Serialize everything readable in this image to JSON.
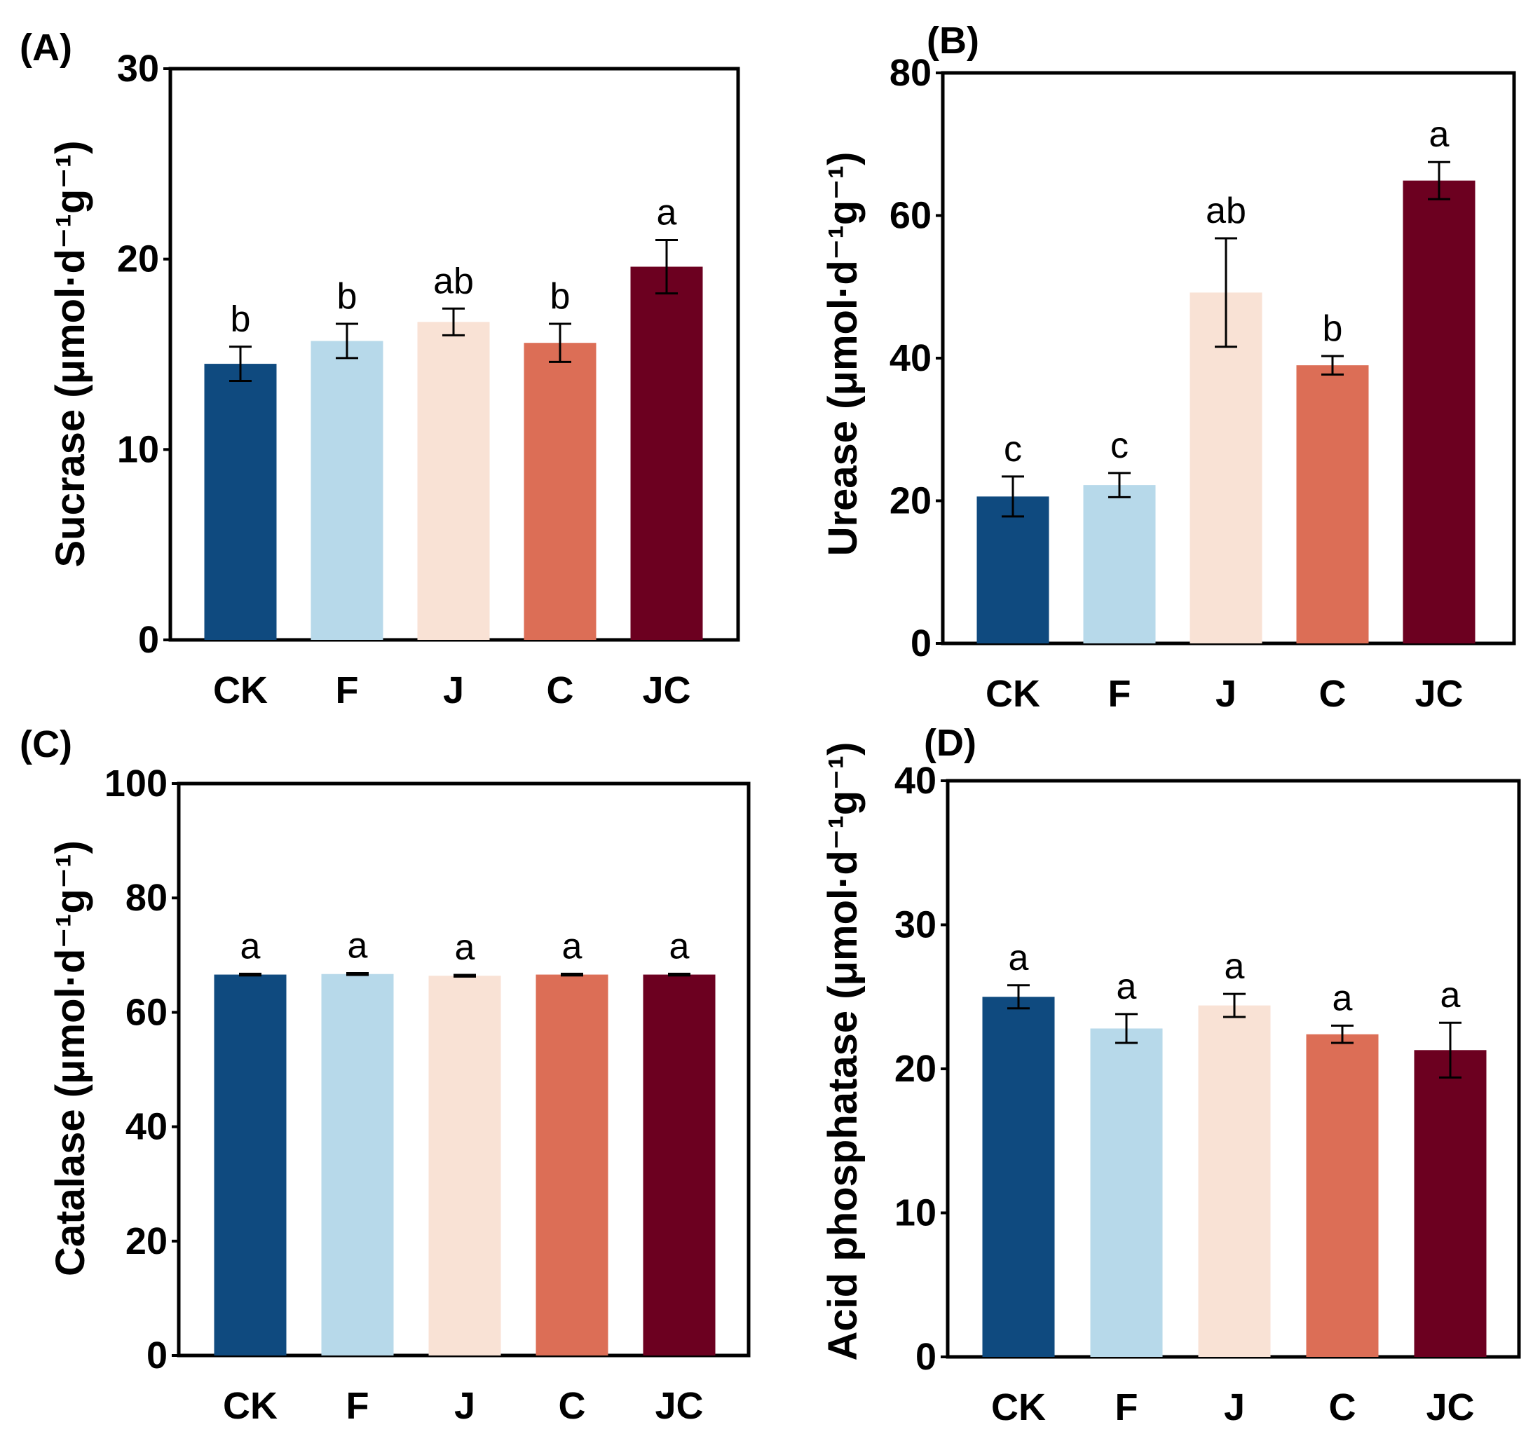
{
  "colors": [
    "#0f4a7f",
    "#b7d9ea",
    "#f9e2d5",
    "#dc6e56",
    "#6c0020"
  ],
  "chart_data": [
    {
      "type": "bar",
      "panel": "(A)",
      "title": "",
      "xlabel": "",
      "ylabel": "Sucrase (μmol·d⁻¹g⁻¹)",
      "ylim": [
        0,
        30
      ],
      "yticks": [
        0,
        10,
        20,
        30
      ],
      "categories": [
        "CK",
        "F",
        "J",
        "C",
        "JC"
      ],
      "values": [
        14.5,
        15.7,
        16.7,
        15.6,
        19.6
      ],
      "errors": [
        0.9,
        0.9,
        0.7,
        1.0,
        1.4
      ],
      "significance": [
        "b",
        "b",
        "ab",
        "b",
        "a"
      ]
    },
    {
      "type": "bar",
      "panel": "(B)",
      "title": "",
      "xlabel": "",
      "ylabel": "Urease (μmol·d⁻¹g⁻¹)",
      "ylim": [
        0,
        80
      ],
      "yticks": [
        0,
        20,
        40,
        60,
        80
      ],
      "categories": [
        "CK",
        "F",
        "J",
        "C",
        "JC"
      ],
      "values": [
        20.6,
        22.2,
        49.2,
        39.0,
        64.9
      ],
      "errors": [
        2.8,
        1.7,
        7.6,
        1.3,
        2.6
      ],
      "significance": [
        "c",
        "c",
        "ab",
        "b",
        "a"
      ]
    },
    {
      "type": "bar",
      "panel": "(C)",
      "title": "",
      "xlabel": "",
      "ylabel": "Catalase (μmol·d⁻¹g⁻¹)",
      "ylim": [
        0,
        100
      ],
      "yticks": [
        0,
        20,
        40,
        60,
        80,
        100
      ],
      "categories": [
        "CK",
        "F",
        "J",
        "C",
        "JC"
      ],
      "values": [
        66.6,
        66.7,
        66.4,
        66.6,
        66.6
      ],
      "errors": [
        0.15,
        0.15,
        0.15,
        0.15,
        0.15
      ],
      "significance": [
        "a",
        "a",
        "a",
        "a",
        "a"
      ]
    },
    {
      "type": "bar",
      "panel": "(D)",
      "title": "",
      "xlabel": "",
      "ylabel": "Acid phosphatase (μmol·d⁻¹g⁻¹)",
      "ylim": [
        0,
        40
      ],
      "yticks": [
        0,
        10,
        20,
        30,
        40
      ],
      "categories": [
        "CK",
        "F",
        "J",
        "C",
        "JC"
      ],
      "values": [
        25.0,
        22.8,
        24.4,
        22.4,
        21.3
      ],
      "errors": [
        0.8,
        1.0,
        0.8,
        0.6,
        1.9
      ],
      "significance": [
        "a",
        "a",
        "a",
        "a",
        "a"
      ]
    }
  ]
}
